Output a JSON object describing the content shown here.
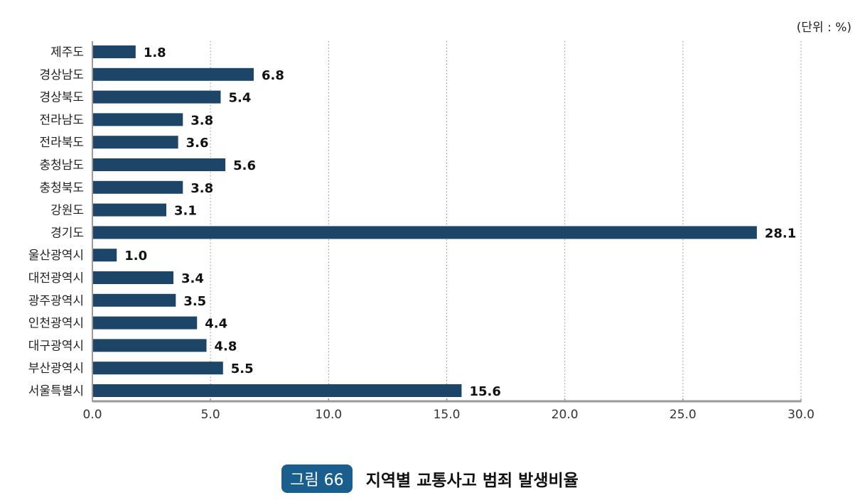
{
  "unit_label": "(단위 : %)",
  "figure": {
    "number": "그림 66",
    "title": "지역별 교통사고 범죄 발생비율"
  },
  "chart_data": {
    "type": "bar",
    "orientation": "horizontal",
    "categories": [
      "제주도",
      "경상남도",
      "경상북도",
      "전라남도",
      "전라북도",
      "충청남도",
      "충청북도",
      "강원도",
      "경기도",
      "울산광역시",
      "대전광역시",
      "광주광역시",
      "인천광역시",
      "대구광역시",
      "부산광역시",
      "서울특별시"
    ],
    "values": [
      1.8,
      6.8,
      5.4,
      3.8,
      3.6,
      5.6,
      3.8,
      3.1,
      28.1,
      1.0,
      3.4,
      3.5,
      4.4,
      4.8,
      5.5,
      15.6
    ],
    "value_labels": [
      "1.8",
      "6.8",
      "5.4",
      "3.8",
      "3.6",
      "5.6",
      "3.8",
      "3.1",
      "28.1",
      "1.0",
      "3.4",
      "3.5",
      "4.4",
      "4.8",
      "5.5",
      "15.6"
    ],
    "xlim": [
      0,
      30
    ],
    "xticks": [
      "0.0",
      "5.0",
      "10.0",
      "15.0",
      "20.0",
      "25.0",
      "30.0"
    ],
    "grid": "vertical-dotted",
    "bar_color": "#1d4568"
  }
}
